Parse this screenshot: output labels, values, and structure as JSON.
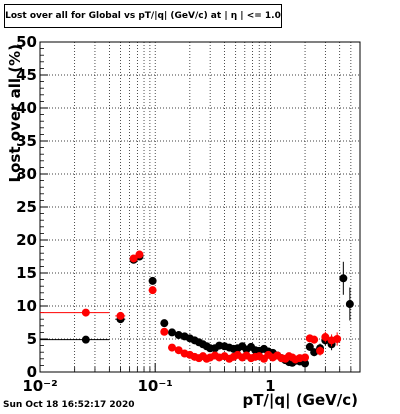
{
  "title": "Lost over all for Global vs pT/|q| (GeV/c) at | η | <= 1.0",
  "footer": "Sun Oct 18 16:52:17 2020",
  "chart_data": {
    "type": "scatter",
    "xlabel": "pT/|q| (GeV/c)",
    "ylabel": "Lost over all (%)",
    "xscale": "log",
    "xlim": [
      0.01,
      6.0
    ],
    "ylim": [
      0,
      50
    ],
    "x_ticks": [
      "10⁻²",
      "10⁻¹",
      "1"
    ],
    "y_ticks": [
      "0",
      "5",
      "10",
      "15",
      "20",
      "25",
      "30",
      "35",
      "40",
      "45",
      "50"
    ],
    "grid": true,
    "series": [
      {
        "color": "#000000",
        "points": [
          {
            "x": 0.025,
            "y": 4.9,
            "xerr": [
              0.01,
              0.04
            ],
            "yerr": 0.3
          },
          {
            "x": 0.05,
            "y": 8.0,
            "xerr": [
              0.045,
              0.055
            ],
            "yerr": 0.4
          },
          {
            "x": 0.065,
            "y": 17.0,
            "xerr": [
              0.062,
              0.068
            ],
            "yerr": 0.5
          },
          {
            "x": 0.073,
            "y": 17.5,
            "xerr": [
              0.07,
              0.076
            ],
            "yerr": 0.5
          },
          {
            "x": 0.095,
            "y": 13.8,
            "xerr": [
              0.088,
              0.102
            ],
            "yerr": 0.5
          },
          {
            "x": 0.12,
            "y": 7.4,
            "xerr": [
              0.112,
              0.128
            ],
            "yerr": 0.4
          },
          {
            "x": 0.14,
            "y": 6.0,
            "yerr": 0.4
          },
          {
            "x": 0.16,
            "y": 5.6,
            "yerr": 0.3
          },
          {
            "x": 0.18,
            "y": 5.4,
            "yerr": 0.3
          },
          {
            "x": 0.2,
            "y": 5.1,
            "yerr": 0.3
          },
          {
            "x": 0.22,
            "y": 4.8,
            "yerr": 0.3
          },
          {
            "x": 0.24,
            "y": 4.5,
            "yerr": 0.3
          },
          {
            "x": 0.26,
            "y": 4.2,
            "yerr": 0.3
          },
          {
            "x": 0.28,
            "y": 3.9,
            "yerr": 0.3
          },
          {
            "x": 0.3,
            "y": 3.6,
            "yerr": 0.3
          },
          {
            "x": 0.33,
            "y": 3.6,
            "yerr": 0.3
          },
          {
            "x": 0.36,
            "y": 4.0,
            "yerr": 0.3
          },
          {
            "x": 0.4,
            "y": 3.9,
            "yerr": 0.3
          },
          {
            "x": 0.44,
            "y": 3.7,
            "yerr": 0.3
          },
          {
            "x": 0.48,
            "y": 3.5,
            "yerr": 0.3
          },
          {
            "x": 0.52,
            "y": 3.6,
            "yerr": 0.3
          },
          {
            "x": 0.57,
            "y": 3.9,
            "yerr": 0.3
          },
          {
            "x": 0.62,
            "y": 3.4,
            "yerr": 0.3
          },
          {
            "x": 0.68,
            "y": 3.8,
            "yerr": 0.3
          },
          {
            "x": 0.74,
            "y": 3.3,
            "yerr": 0.3
          },
          {
            "x": 0.8,
            "y": 3.2,
            "yerr": 0.3
          },
          {
            "x": 0.88,
            "y": 3.5,
            "yerr": 0.3
          },
          {
            "x": 0.96,
            "y": 3.1,
            "yerr": 0.3
          },
          {
            "x": 1.05,
            "y": 2.9,
            "yerr": 0.3
          },
          {
            "x": 1.15,
            "y": 2.5,
            "yerr": 0.3
          },
          {
            "x": 1.25,
            "y": 2.1,
            "yerr": 0.3
          },
          {
            "x": 1.35,
            "y": 1.8,
            "yerr": 0.3
          },
          {
            "x": 1.45,
            "y": 1.5,
            "yerr": 0.3
          },
          {
            "x": 1.55,
            "y": 1.4,
            "yerr": 0.3
          },
          {
            "x": 1.65,
            "y": 1.7,
            "yerr": 0.4
          },
          {
            "x": 1.8,
            "y": 1.6,
            "yerr": 0.4
          },
          {
            "x": 2.0,
            "y": 1.3,
            "yerr": 0.4
          },
          {
            "x": 2.2,
            "y": 3.8,
            "yerr": 0.6
          },
          {
            "x": 2.4,
            "y": 3.0,
            "yerr": 0.6
          },
          {
            "x": 2.7,
            "y": 3.6,
            "yerr": 0.7
          },
          {
            "x": 3.0,
            "y": 4.8,
            "yerr": 0.8
          },
          {
            "x": 3.4,
            "y": 4.2,
            "yerr": 0.9
          },
          {
            "x": 4.3,
            "y": 14.2,
            "yerr": 2.5
          },
          {
            "x": 4.9,
            "y": 10.3,
            "yerr": 2.5
          }
        ]
      },
      {
        "color": "#ff0000",
        "points": [
          {
            "x": 0.025,
            "y": 9.0,
            "xerr": [
              0.01,
              0.04
            ],
            "yerr": 0.4
          },
          {
            "x": 0.05,
            "y": 8.5,
            "xerr": [
              0.045,
              0.055
            ],
            "yerr": 0.4
          },
          {
            "x": 0.065,
            "y": 17.2,
            "xerr": [
              0.062,
              0.068
            ],
            "yerr": 0.5
          },
          {
            "x": 0.073,
            "y": 17.8,
            "xerr": [
              0.07,
              0.076
            ],
            "yerr": 0.5
          },
          {
            "x": 0.095,
            "y": 12.4,
            "xerr": [
              0.088,
              0.102
            ],
            "yerr": 0.5
          },
          {
            "x": 0.12,
            "y": 6.1,
            "xerr": [
              0.112,
              0.128
            ],
            "yerr": 0.4
          },
          {
            "x": 0.14,
            "y": 3.7,
            "yerr": 0.3
          },
          {
            "x": 0.16,
            "y": 3.3,
            "yerr": 0.3
          },
          {
            "x": 0.18,
            "y": 2.8,
            "yerr": 0.3
          },
          {
            "x": 0.2,
            "y": 2.6,
            "yerr": 0.3
          },
          {
            "x": 0.22,
            "y": 2.3,
            "yerr": 0.3
          },
          {
            "x": 0.24,
            "y": 2.1,
            "yerr": 0.3
          },
          {
            "x": 0.26,
            "y": 2.4,
            "yerr": 0.3
          },
          {
            "x": 0.28,
            "y": 2.0,
            "yerr": 0.3
          },
          {
            "x": 0.3,
            "y": 2.2,
            "yerr": 0.3
          },
          {
            "x": 0.33,
            "y": 2.5,
            "yerr": 0.3
          },
          {
            "x": 0.36,
            "y": 2.2,
            "yerr": 0.3
          },
          {
            "x": 0.4,
            "y": 2.4,
            "yerr": 0.3
          },
          {
            "x": 0.44,
            "y": 2.0,
            "yerr": 0.3
          },
          {
            "x": 0.48,
            "y": 2.3,
            "yerr": 0.3
          },
          {
            "x": 0.52,
            "y": 2.6,
            "yerr": 0.3
          },
          {
            "x": 0.57,
            "y": 2.2,
            "yerr": 0.3
          },
          {
            "x": 0.62,
            "y": 2.5,
            "yerr": 0.3
          },
          {
            "x": 0.68,
            "y": 2.1,
            "yerr": 0.3
          },
          {
            "x": 0.74,
            "y": 2.3,
            "yerr": 0.3
          },
          {
            "x": 0.8,
            "y": 2.4,
            "yerr": 0.3
          },
          {
            "x": 0.88,
            "y": 2.0,
            "yerr": 0.3
          },
          {
            "x": 0.96,
            "y": 2.6,
            "yerr": 0.3
          },
          {
            "x": 1.05,
            "y": 2.2,
            "yerr": 0.3
          },
          {
            "x": 1.15,
            "y": 2.5,
            "yerr": 0.3
          },
          {
            "x": 1.25,
            "y": 2.1,
            "yerr": 0.3
          },
          {
            "x": 1.35,
            "y": 2.0,
            "yerr": 0.3
          },
          {
            "x": 1.45,
            "y": 2.4,
            "yerr": 0.3
          },
          {
            "x": 1.55,
            "y": 2.2,
            "yerr": 0.3
          },
          {
            "x": 1.65,
            "y": 1.9,
            "yerr": 0.4
          },
          {
            "x": 1.8,
            "y": 2.1,
            "yerr": 0.4
          },
          {
            "x": 2.0,
            "y": 2.2,
            "yerr": 0.4
          },
          {
            "x": 2.2,
            "y": 5.1,
            "yerr": 0.6
          },
          {
            "x": 2.4,
            "y": 4.9,
            "yerr": 0.6
          },
          {
            "x": 2.7,
            "y": 3.2,
            "yerr": 0.7
          },
          {
            "x": 3.0,
            "y": 5.3,
            "yerr": 0.8
          },
          {
            "x": 3.4,
            "y": 4.8,
            "yerr": 0.9
          },
          {
            "x": 3.8,
            "y": 5.0,
            "yerr": 1.0
          }
        ]
      }
    ]
  }
}
